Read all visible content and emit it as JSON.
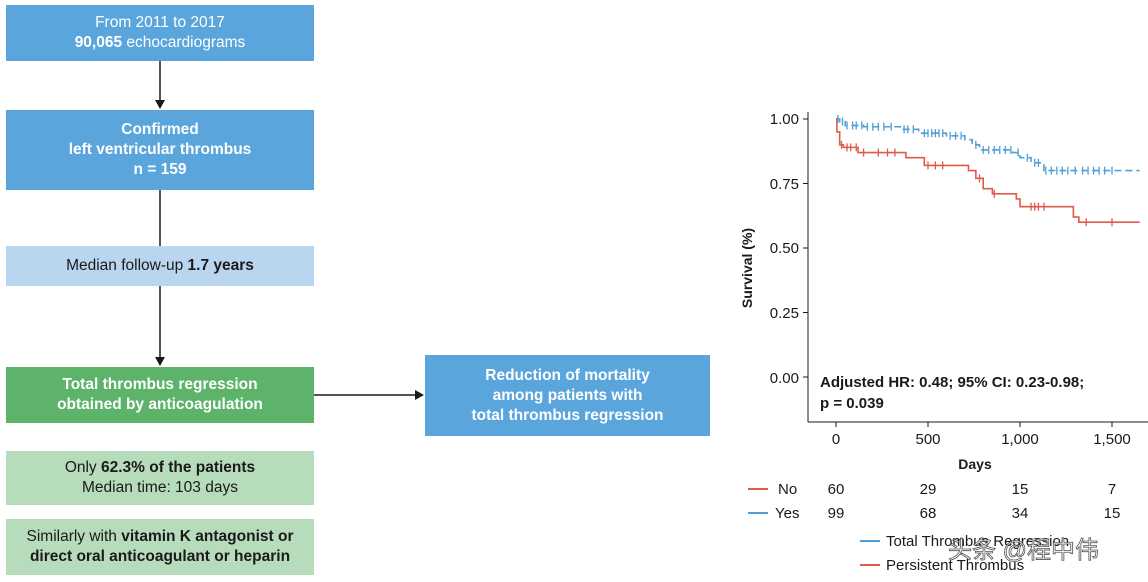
{
  "flow": {
    "box1": {
      "line1": "From 2011 to 2017",
      "line2_bold": "90,065",
      "line2_rest": " echocardiograms"
    },
    "box2": {
      "line1": "Confirmed",
      "line2": "left ventricular thrombus",
      "line3": "n = 159"
    },
    "box3": {
      "text": "Median follow-up ",
      "bold": "1.7 years"
    },
    "box4": {
      "line1": "Total thrombus regression",
      "line2": "obtained by anticoagulation"
    },
    "box5": {
      "line1_pre": "Only ",
      "line1_bold": "62.3% of the patients",
      "line2": "Median time: 103 days"
    },
    "box6": {
      "line1_pre": "Similarly with ",
      "line1_bold": "vitamin K antagonist or",
      "line2": "direct oral anticoagulant or heparin"
    },
    "outcome": {
      "line1": "Reduction of mortality",
      "line2": "among patients with",
      "line3": "total thrombus regression"
    }
  },
  "colors": {
    "dark_blue": "#5aa6dc",
    "light_blue": "#bad5ef",
    "green": "#5db36a",
    "light_green": "#b7dcbb",
    "series_no": "#e05a4a",
    "series_yes": "#4f9ed6"
  },
  "chart_data": {
    "type": "line",
    "subtype": "kaplan-meier",
    "xlabel": "Days",
    "ylabel": "Survival (%)",
    "xlim": [
      -100,
      1650
    ],
    "ylim": [
      -0.2,
      1.0
    ],
    "xticks": [
      0,
      500,
      1000,
      1500
    ],
    "xtick_labels": [
      "0",
      "500",
      "1,000",
      "1,500"
    ],
    "yticks": [
      0.0,
      0.25,
      0.5,
      0.75,
      1.0
    ],
    "ytick_labels": [
      "0.00",
      "0.25",
      "0.50",
      "0.75",
      "1.00"
    ],
    "annotation": {
      "line1": "Adjusted HR: 0.48; 95% CI: 0.23-0.98;",
      "line2": "p = 0.039"
    },
    "series": [
      {
        "name": "Total Thrombus Regression",
        "risk_label": "Yes",
        "dashed": true,
        "steps": [
          [
            0,
            1.0
          ],
          [
            20,
            0.99
          ],
          [
            50,
            0.975
          ],
          [
            150,
            0.97
          ],
          [
            350,
            0.96
          ],
          [
            450,
            0.945
          ],
          [
            600,
            0.935
          ],
          [
            700,
            0.92
          ],
          [
            740,
            0.9
          ],
          [
            780,
            0.88
          ],
          [
            960,
            0.87
          ],
          [
            1000,
            0.85
          ],
          [
            1060,
            0.83
          ],
          [
            1130,
            0.8
          ],
          [
            1650,
            0.8
          ]
        ],
        "censor": [
          10,
          35,
          60,
          90,
          110,
          140,
          170,
          200,
          230,
          260,
          300,
          370,
          390,
          420,
          480,
          500,
          520,
          540,
          560,
          580,
          620,
          650,
          680,
          760,
          800,
          830,
          860,
          890,
          920,
          950,
          990,
          1040,
          1080,
          1100,
          1140,
          1170,
          1200,
          1230,
          1260,
          1300,
          1340,
          1370,
          1400,
          1430,
          1460,
          1500
        ]
      },
      {
        "name": "Persistent Thrombus",
        "risk_label": "No",
        "dashed": false,
        "steps": [
          [
            0,
            1.0
          ],
          [
            5,
            0.95
          ],
          [
            20,
            0.9
          ],
          [
            40,
            0.89
          ],
          [
            120,
            0.87
          ],
          [
            380,
            0.85
          ],
          [
            480,
            0.82
          ],
          [
            720,
            0.8
          ],
          [
            760,
            0.77
          ],
          [
            800,
            0.73
          ],
          [
            850,
            0.71
          ],
          [
            980,
            0.69
          ],
          [
            1000,
            0.66
          ],
          [
            1290,
            0.62
          ],
          [
            1320,
            0.6
          ],
          [
            1650,
            0.6
          ]
        ],
        "censor": [
          30,
          60,
          80,
          110,
          150,
          230,
          280,
          320,
          500,
          540,
          580,
          780,
          860,
          1060,
          1080,
          1100,
          1130,
          1360,
          1500
        ]
      }
    ],
    "risk_table": {
      "times": [
        0,
        500,
        1000,
        1500
      ],
      "rows": [
        {
          "label": "No",
          "values": [
            "60",
            "29",
            "15",
            "7"
          ]
        },
        {
          "label": "Yes",
          "values": [
            "99",
            "68",
            "34",
            "15"
          ]
        }
      ]
    },
    "legend": [
      "Total Thrombus Regression",
      "Persistent Thrombus"
    ]
  },
  "watermark": "头条 @程中伟"
}
